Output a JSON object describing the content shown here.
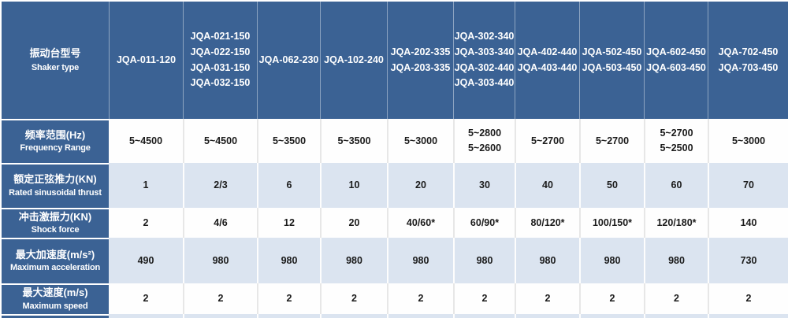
{
  "colors": {
    "header_blue": "#3b6294",
    "banded_row_blue": "#dbe4f0",
    "row_white": "#fefefe",
    "text_dark": "#1b1b1b",
    "cell_separator": "#e7e7e7"
  },
  "chart_data": {
    "type": "table",
    "title": "",
    "corner_header": {
      "zh": "振动台型号",
      "en": "Shaker type"
    },
    "columns": [
      [
        "JQA-011-120"
      ],
      [
        "JQA-021-150",
        "JQA-022-150",
        "JQA-031-150",
        "JQA-032-150"
      ],
      [
        "JQA-062-230"
      ],
      [
        "JQA-102-240"
      ],
      [
        "JQA-202-335",
        "JQA-203-335"
      ],
      [
        "JQA-302-340",
        "JQA-303-340",
        "JQA-302-440",
        "JQA-303-440"
      ],
      [
        "JQA-402-440",
        "JQA-403-440"
      ],
      [
        "JQA-502-450",
        "JQA-503-450"
      ],
      [
        "JQA-602-450",
        "JQA-603-450"
      ],
      [
        "JQA-702-450",
        "JQA-703-450"
      ]
    ],
    "rows": [
      {
        "zh": "频率范围(Hz)",
        "en": "Frequency Range",
        "values": [
          [
            "5~4500"
          ],
          [
            "5~4500"
          ],
          [
            "5~3500"
          ],
          [
            "5~3500"
          ],
          [
            "5~3000"
          ],
          [
            "5~2800",
            "5~2600"
          ],
          [
            "5~2700"
          ],
          [
            "5~2700"
          ],
          [
            "5~2700",
            "5~2500"
          ],
          [
            "5~3000"
          ]
        ]
      },
      {
        "zh": "额定正弦推力(KN)",
        "en": "Rated sinusoidal thrust",
        "values": [
          [
            "1"
          ],
          [
            "2/3"
          ],
          [
            "6"
          ],
          [
            "10"
          ],
          [
            "20"
          ],
          [
            "30"
          ],
          [
            "40"
          ],
          [
            "50"
          ],
          [
            "60"
          ],
          [
            "70"
          ]
        ]
      },
      {
        "zh": "冲击激振力(KN)",
        "en": "Shock force",
        "values": [
          [
            "2"
          ],
          [
            "4/6"
          ],
          [
            "12"
          ],
          [
            "20"
          ],
          [
            "40/60*"
          ],
          [
            "60/90*"
          ],
          [
            "80/120*"
          ],
          [
            "100/150*"
          ],
          [
            "120/180*"
          ],
          [
            "140"
          ]
        ]
      },
      {
        "zh": "最大加速度(m/s²)",
        "en": "Maximum acceleration",
        "values": [
          [
            "490"
          ],
          [
            "980"
          ],
          [
            "980"
          ],
          [
            "980"
          ],
          [
            "980"
          ],
          [
            "980"
          ],
          [
            "980"
          ],
          [
            "980"
          ],
          [
            "980"
          ],
          [
            "730"
          ]
        ]
      },
      {
        "zh": "最大速度(m/s)",
        "en": "Maximum speed",
        "values": [
          [
            "2"
          ],
          [
            "2"
          ],
          [
            "2"
          ],
          [
            "2"
          ],
          [
            "2"
          ],
          [
            "2"
          ],
          [
            "2"
          ],
          [
            "2"
          ],
          [
            "2"
          ],
          [
            "2"
          ]
        ]
      }
    ]
  }
}
